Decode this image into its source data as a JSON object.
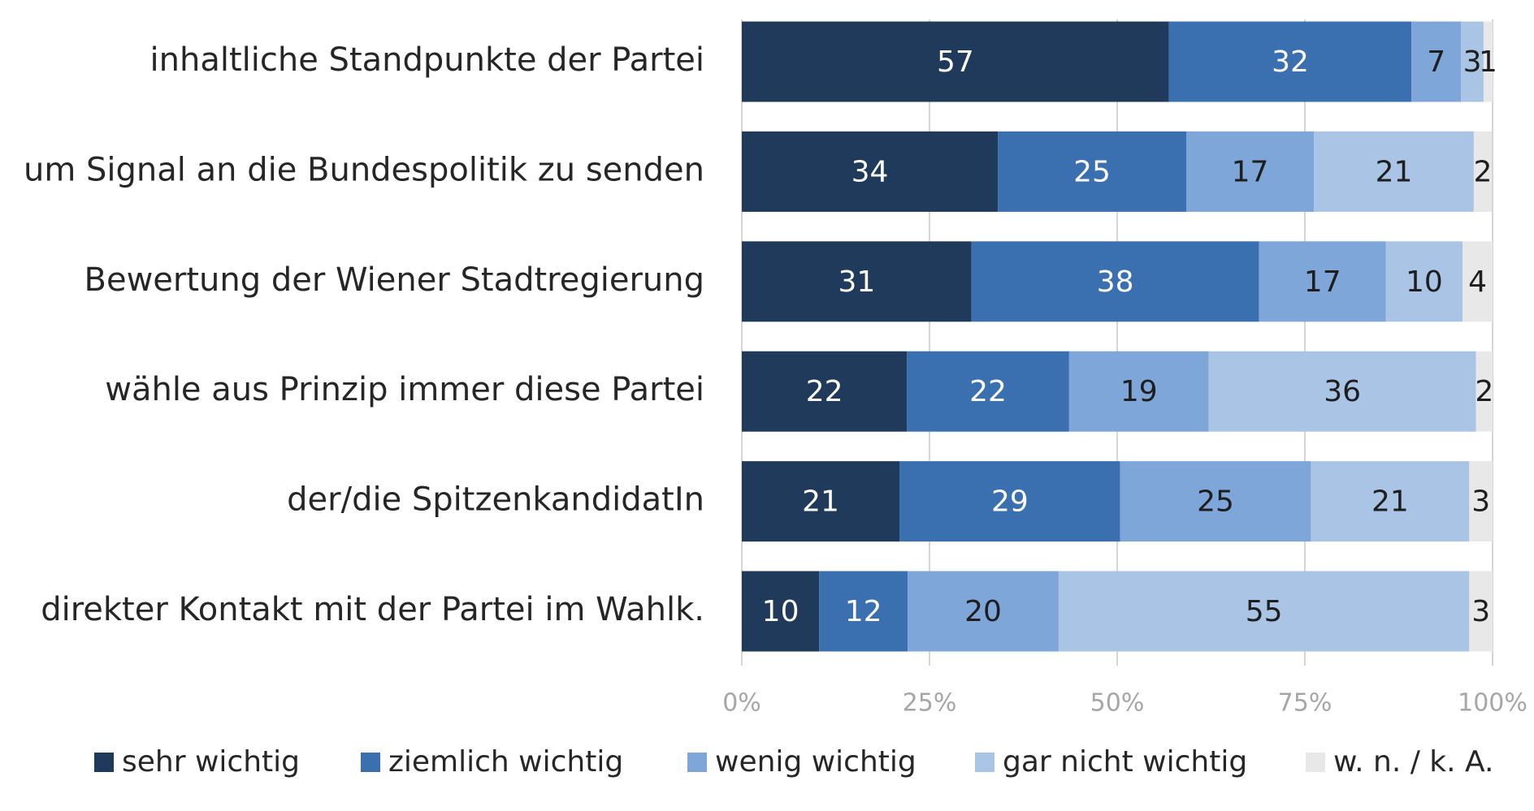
{
  "chart_data": {
    "type": "stacked_barh",
    "categories": [
      "inhaltliche Standpunkte der Partei",
      "um Signal an die Bundespolitik zu senden",
      "Bewertung der Wiener Stadtregierung",
      "wähle aus Prinzip immer diese Partei",
      "der/die SpitzenkandidatIn",
      "direkter Kontakt mit der Partei im Wahlk."
    ],
    "series": [
      {
        "name": "sehr wichtig",
        "color": "#1f3a5a",
        "label_color": "#ffffff",
        "values": [
          56.9,
          34.1,
          30.6,
          22.0,
          21.0,
          10.3
        ],
        "value_labels": [
          "57",
          "34",
          "31",
          "22",
          "21",
          "10"
        ]
      },
      {
        "name": "ziemlich wichtig",
        "color": "#3a6fb0",
        "label_color": "#ffffff",
        "values": [
          32.3,
          25.1,
          38.3,
          21.6,
          29.4,
          11.8
        ],
        "value_labels": [
          "32",
          "25",
          "38",
          "22",
          "29",
          "12"
        ]
      },
      {
        "name": "wenig wichtig",
        "color": "#7ea6d9",
        "label_color": "#1e1e1e",
        "values": [
          6.6,
          17.0,
          16.9,
          18.6,
          25.4,
          20.1
        ],
        "value_labels": [
          "7",
          "17",
          "17",
          "19",
          "25",
          "20"
        ]
      },
      {
        "name": "gar nicht wichtig",
        "color": "#a9c4e4",
        "label_color": "#1e1e1e",
        "values": [
          3.0,
          21.3,
          10.2,
          35.6,
          21.1,
          54.7
        ],
        "value_labels": [
          "3",
          "21",
          "10",
          "36",
          "21",
          "55"
        ]
      },
      {
        "name": "w. n. / k. A.",
        "color": "#e8e8e8",
        "label_color": "#1e1e1e",
        "values": [
          1.2,
          2.4,
          4.0,
          2.2,
          3.1,
          3.1
        ],
        "value_labels": [
          "1",
          "2",
          "4",
          "2",
          "3",
          "3"
        ]
      }
    ],
    "xlim": [
      0,
      100
    ],
    "xticks": [
      {
        "value": 0,
        "label": "0%"
      },
      {
        "value": 25,
        "label": "25%"
      },
      {
        "value": 50,
        "label": "50%"
      },
      {
        "value": 75,
        "label": "75%"
      },
      {
        "value": 100,
        "label": "100%"
      }
    ],
    "grid": true,
    "legend": "bottom"
  }
}
